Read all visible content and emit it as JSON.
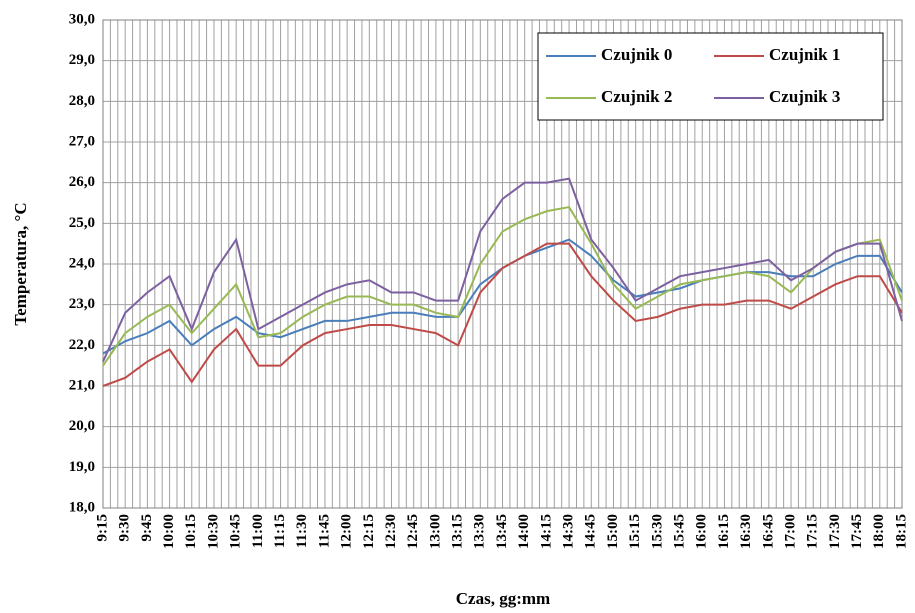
{
  "chart_data": {
    "type": "line",
    "y_label": "Temperatura, °C",
    "x_label": "Czas, gg:mm",
    "categories": [
      "9:15",
      "9:30",
      "9:45",
      "10:00",
      "10:15",
      "10:30",
      "10:45",
      "11:00",
      "11:15",
      "11:30",
      "11:45",
      "12:00",
      "12:15",
      "12:30",
      "12:45",
      "13:00",
      "13:15",
      "13:30",
      "13:45",
      "14:00",
      "14:15",
      "14:30",
      "14:45",
      "15:00",
      "15:15",
      "15:30",
      "15:45",
      "16:00",
      "16:15",
      "16:30",
      "16:45",
      "17:00",
      "17:15",
      "17:30",
      "17:45",
      "18:00",
      "18:15"
    ],
    "series": [
      {
        "name": "Czujnik 0",
        "color": "#4a7ebb",
        "values": [
          21.8,
          22.1,
          22.3,
          22.6,
          22.0,
          22.4,
          22.7,
          22.3,
          22.2,
          22.4,
          22.6,
          22.6,
          22.7,
          22.8,
          22.8,
          22.7,
          22.7,
          23.5,
          23.9,
          24.2,
          24.4,
          24.6,
          24.2,
          23.6,
          23.2,
          23.3,
          23.4,
          23.6,
          23.7,
          23.8,
          23.8,
          23.7,
          23.7,
          24.0,
          24.2,
          24.2,
          23.3
        ]
      },
      {
        "name": "Czujnik 1",
        "color": "#be4b48",
        "values": [
          21.0,
          21.2,
          21.6,
          21.9,
          21.1,
          21.9,
          22.4,
          21.5,
          21.5,
          22.0,
          22.3,
          22.4,
          22.5,
          22.5,
          22.4,
          22.3,
          22.0,
          23.3,
          23.9,
          24.2,
          24.5,
          24.5,
          23.7,
          23.1,
          22.6,
          22.7,
          22.9,
          23.0,
          23.0,
          23.1,
          23.1,
          22.9,
          23.2,
          23.5,
          23.7,
          23.7,
          22.8
        ]
      },
      {
        "name": "Czujnik 2",
        "color": "#98b954",
        "values": [
          21.5,
          22.3,
          22.7,
          23.0,
          22.3,
          22.9,
          23.5,
          22.2,
          22.3,
          22.7,
          23.0,
          23.2,
          23.2,
          23.0,
          23.0,
          22.8,
          22.7,
          24.0,
          24.8,
          25.1,
          25.3,
          25.4,
          24.5,
          23.5,
          22.9,
          23.2,
          23.5,
          23.6,
          23.7,
          23.8,
          23.7,
          23.3,
          23.9,
          24.3,
          24.5,
          24.6,
          23.1
        ]
      },
      {
        "name": "Czujnik 3",
        "color": "#7d60a0",
        "values": [
          21.6,
          22.8,
          23.3,
          23.7,
          22.4,
          23.8,
          24.6,
          22.4,
          22.7,
          23.0,
          23.3,
          23.5,
          23.6,
          23.3,
          23.3,
          23.1,
          23.1,
          24.8,
          25.6,
          26.0,
          26.0,
          26.1,
          24.6,
          23.9,
          23.1,
          23.4,
          23.7,
          23.8,
          23.9,
          24.0,
          24.1,
          23.6,
          23.9,
          24.3,
          24.5,
          24.5,
          22.6
        ]
      }
    ],
    "ylim": [
      18,
      30
    ],
    "yticks": [
      {
        "value": 18,
        "label": "18,0"
      },
      {
        "value": 19,
        "label": "19,0"
      },
      {
        "value": 20,
        "label": "20,0"
      },
      {
        "value": 21,
        "label": "21,0"
      },
      {
        "value": 22,
        "label": "22,0"
      },
      {
        "value": 23,
        "label": "23,0"
      },
      {
        "value": 24,
        "label": "24,0"
      },
      {
        "value": 25,
        "label": "25,0"
      },
      {
        "value": 26,
        "label": "26,0"
      },
      {
        "value": 27,
        "label": "27,0"
      },
      {
        "value": 28,
        "label": "28,0"
      },
      {
        "value": 29,
        "label": "29,0"
      },
      {
        "value": 30,
        "label": "30,0"
      }
    ],
    "grid": true
  }
}
